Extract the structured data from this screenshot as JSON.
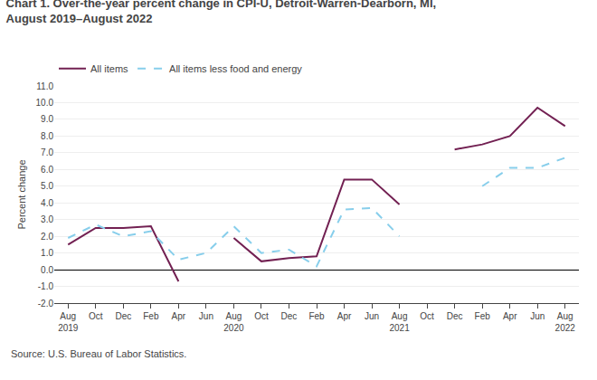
{
  "chart_data": {
    "type": "line",
    "title": "Chart 1. Over-the-year percent change in CPI-U, Detroit-Warren-Dearborn, MI,\nAugust 2019–August 2022",
    "ylabel": "Percent change",
    "annotations": [
      "Source: U.S. Bureau of Labor Statistics."
    ],
    "categories": [
      "Aug\n2019",
      "Oct",
      "Dec",
      "Feb",
      "Apr",
      "Jun",
      "Aug\n2020",
      "Oct",
      "Dec",
      "Feb",
      "Apr",
      "Jun",
      "Aug\n2021",
      "Oct",
      "Dec",
      "Feb",
      "Apr",
      "Jun",
      "Aug\n2022"
    ],
    "series": [
      {
        "name": "All items",
        "color": "#722052",
        "line_style": "solid",
        "values": [
          1.5,
          2.5,
          2.5,
          2.6,
          -0.7,
          null,
          1.9,
          0.5,
          0.7,
          0.8,
          5.4,
          5.4,
          3.9,
          null,
          7.2,
          7.5,
          8.0,
          9.7,
          8.6
        ]
      },
      {
        "name": "All items less food and energy",
        "color": "#87CEEB",
        "line_style": "dashed",
        "values": [
          1.9,
          2.7,
          2.0,
          2.3,
          0.6,
          1.0,
          2.6,
          1.0,
          1.2,
          0.2,
          3.6,
          3.7,
          2.0,
          null,
          null,
          5.0,
          6.1,
          6.1,
          6.7
        ]
      }
    ],
    "ylim": [
      -2.0,
      11.0
    ],
    "yticks": [
      {
        "value": -2.0,
        "label": "-2.0"
      },
      {
        "value": -1.0,
        "label": "-1.0"
      },
      {
        "value": 0.0,
        "label": "0.0"
      },
      {
        "value": 1.0,
        "label": "1.0"
      },
      {
        "value": 2.0,
        "label": "2.0"
      },
      {
        "value": 3.0,
        "label": "3.0"
      },
      {
        "value": 4.0,
        "label": "4.0"
      },
      {
        "value": 5.0,
        "label": "5.0"
      },
      {
        "value": 6.0,
        "label": "6.0"
      },
      {
        "value": 7.0,
        "label": "7.0"
      },
      {
        "value": 8.0,
        "label": "8.0"
      },
      {
        "value": 9.0,
        "label": "9.0"
      },
      {
        "value": 10.0,
        "label": "10.0"
      },
      {
        "value": 11.0,
        "label": "11.0"
      }
    ],
    "grid": true,
    "legend": "top"
  }
}
